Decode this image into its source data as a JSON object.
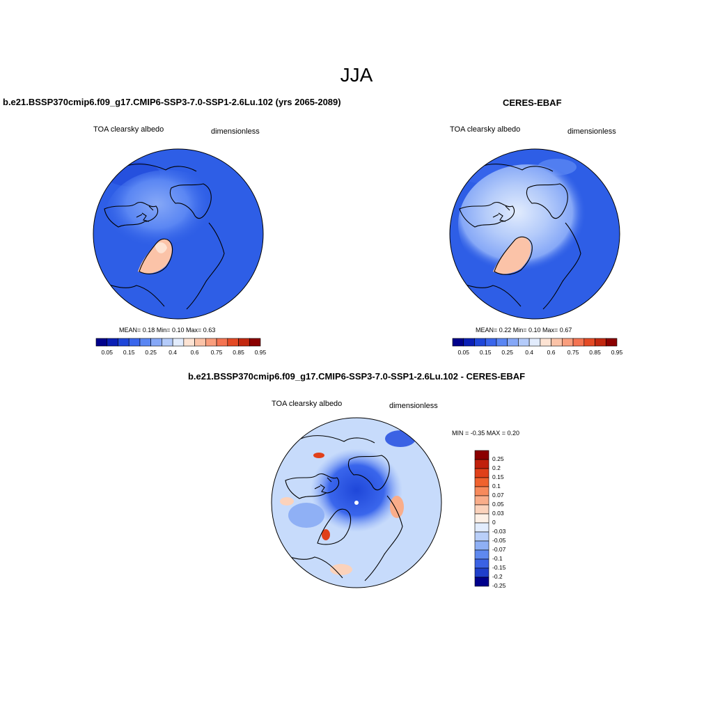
{
  "figure_title": "JJA",
  "panels": [
    {
      "title": "b.e21.BSSP370cmip6.f09_g17.CMIP6-SSP3-7.0-SSP1-2.6Lu.102 (yrs 2065-2089)",
      "left_label": "TOA clearsky albedo",
      "right_label": "dimensionless",
      "stats": "MEAN=   0.18  Min=   0.10  Max=   0.63",
      "colorbar_labels": [
        "0.05",
        "0.15",
        "0.25",
        "0.4",
        "0.6",
        "0.75",
        "0.85",
        "0.95"
      ]
    },
    {
      "title": "CERES-EBAF",
      "left_label": "TOA clearsky albedo",
      "right_label": "dimensionless",
      "stats": "MEAN=   0.22  Min=   0.10  Max=   0.67",
      "colorbar_labels": [
        "0.05",
        "0.15",
        "0.25",
        "0.4",
        "0.6",
        "0.75",
        "0.85",
        "0.95"
      ]
    },
    {
      "title": "b.e21.BSSP370cmip6.f09_g17.CMIP6-SSP3-7.0-SSP1-2.6Lu.102 - CERES-EBAF",
      "left_label": "TOA clearsky albedo",
      "right_label": "dimensionless",
      "stats": "MIN =  -0.35 MAX =   0.20",
      "colorbar_labels": [
        "0.25",
        "0.2",
        "0.15",
        "0.1",
        "0.07",
        "0.05",
        "0.03",
        "0",
        "-0.03",
        "-0.05",
        "-0.07",
        "-0.1",
        "-0.15",
        "-0.2",
        "-0.25"
      ]
    }
  ],
  "colors": {
    "abs_scale": [
      "#00008b",
      "#0a1fb5",
      "#1f47d9",
      "#3a66ec",
      "#5a86f3",
      "#86a8f7",
      "#b4cbfa",
      "#e2ecfd",
      "#fde3d3",
      "#fbc3a8",
      "#f99e7d",
      "#f47452",
      "#e44a25",
      "#c22810",
      "#8b0000"
    ],
    "diff_scale": [
      "#8b0000",
      "#c0200c",
      "#e0401a",
      "#f0622e",
      "#f78a5c",
      "#f9ad8a",
      "#fbd2bb",
      "#fdf0e6",
      "#e2ecfd",
      "#b9cff9",
      "#8fb0f5",
      "#5f89ef",
      "#3b62e4",
      "#1f3fcb",
      "#00008b"
    ],
    "ocean_abs": "#2e5ee6",
    "ocean_diff": "#c7dbfb"
  }
}
